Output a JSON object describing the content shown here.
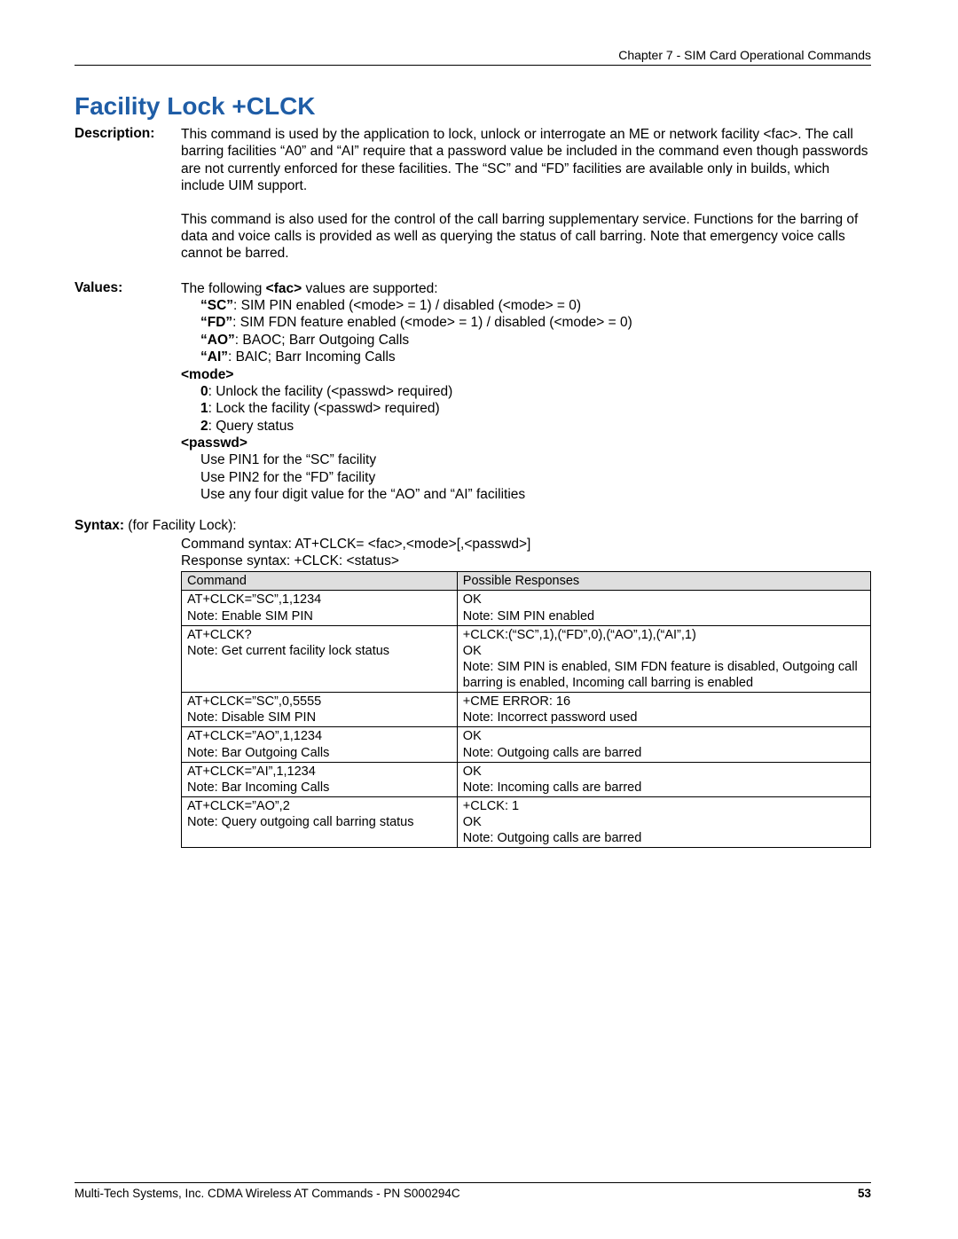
{
  "header": {
    "chapter": "Chapter 7 - SIM Card Operational Commands"
  },
  "title": "Facility Lock  +CLCK",
  "description": {
    "label": "Description:",
    "para1": "This command is used by the application to lock, unlock or interrogate an ME or network facility <fac>. The call barring facilities “A0” and “AI” require that a password value be included in the command even though passwords are not currently enforced for these facilities. The “SC” and “FD” facilities are available only in builds, which include UIM support.",
    "para2": "This command is also used for the control of the call barring supplementary service. Functions for the barring of data and voice calls is provided as well as querying the status of call barring. Note that emergency voice calls cannot be barred."
  },
  "values": {
    "label": "Values:",
    "intro": "The following <fac> values are supported:",
    "introBoldWord": "<fac>",
    "sc_label": "“SC”",
    "sc_text": ": SIM PIN enabled (<mode> = 1) / disabled (<mode> = 0)",
    "fd_label": "“FD”",
    "fd_text": ": SIM FDN feature enabled (<mode> = 1) / disabled (<mode> = 0)",
    "ao_label": "“AO”",
    "ao_text": ": BAOC; Barr Outgoing Calls",
    "ai_label": "“AI”",
    "ai_text": ": BAIC; Barr Incoming Calls",
    "mode_label": "<mode>",
    "mode_0_b": "0",
    "mode_0_t": ": Unlock the facility (<passwd> required)",
    "mode_1_b": "1",
    "mode_1_t": ": Lock the facility (<passwd> required)",
    "mode_2_b": "2",
    "mode_2_t": ": Query status",
    "passwd_label": "<passwd>",
    "passwd_1": "Use PIN1 for the “SC” facility",
    "passwd_2": "Use PIN2 for the “FD” facility",
    "passwd_3": "Use any four digit value for the “AO” and “AI” facilities"
  },
  "syntax": {
    "label": "Syntax:",
    "suffix": " (for Facility Lock):",
    "cmd": "Command syntax: AT+CLCK= <fac>,<mode>[,<passwd>]",
    "resp": "Response syntax: +CLCK: <status>"
  },
  "table": {
    "h1": "Command",
    "h2": "Possible Responses",
    "rows": [
      {
        "c": "AT+CLCK=”SC”,1,1234\nNote: Enable SIM PIN",
        "r": "OK\nNote: SIM PIN enabled"
      },
      {
        "c": "AT+CLCK?\nNote: Get current facility lock status",
        "r": "+CLCK:(“SC”,1),(“FD”,0),(“AO”,1),(“AI”,1)\nOK\nNote: SIM PIN is enabled, SIM FDN feature is disabled, Outgoing call barring is enabled, Incoming call barring is enabled"
      },
      {
        "c": "AT+CLCK=”SC”,0,5555\nNote: Disable SIM PIN",
        "r": "+CME ERROR: 16\nNote: Incorrect password used"
      },
      {
        "c": "AT+CLCK=”AO”,1,1234\nNote: Bar Outgoing Calls",
        "r": "OK\nNote: Outgoing calls are barred"
      },
      {
        "c": "AT+CLCK=”AI”,1,1234\nNote: Bar Incoming Calls",
        "r": "OK\nNote: Incoming calls are barred"
      },
      {
        "c": "AT+CLCK=”AO”,2\nNote: Query outgoing call barring status",
        "r": "+CLCK: 1\nOK\nNote: Outgoing calls are barred"
      }
    ]
  },
  "footer": {
    "text": "Multi-Tech Systems, Inc. CDMA Wireless AT Commands - PN S000294C",
    "page": "53"
  },
  "colors": {
    "title": "#1f5da6",
    "thbg": "#dedede",
    "border": "#000000"
  }
}
